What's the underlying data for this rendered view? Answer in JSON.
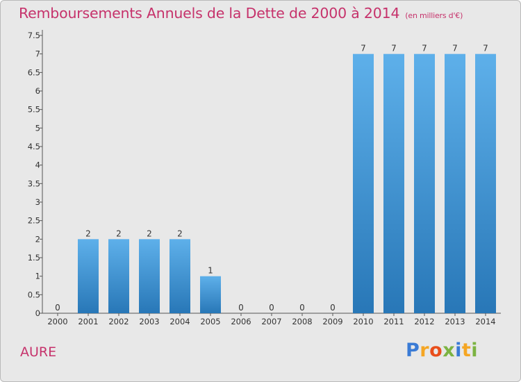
{
  "title": "Remboursements Annuels de la Dette de 2000 à 2014",
  "unit_note": "(en milliers d'€)",
  "commune": "AURE",
  "logo": {
    "letters": [
      "P",
      "r",
      "o",
      "x",
      "i",
      "t",
      "i"
    ],
    "colors": [
      "#3a7bd5",
      "#f5a623",
      "#e94e1b",
      "#7cb342",
      "#3a7bd5",
      "#f5a623",
      "#7cb342"
    ]
  },
  "chart_data": {
    "type": "bar",
    "title": "Remboursements Annuels de la Dette de 2000 à 2014",
    "subtitle": "(en milliers d'€)",
    "xlabel": "",
    "ylabel": "",
    "categories": [
      "2000",
      "2001",
      "2002",
      "2003",
      "2004",
      "2005",
      "2006",
      "2007",
      "2008",
      "2009",
      "2010",
      "2011",
      "2012",
      "2013",
      "2014"
    ],
    "values": [
      0,
      2,
      2,
      2,
      2,
      1,
      0,
      0,
      0,
      0,
      7,
      7,
      7,
      7,
      7
    ],
    "data_labels": [
      "0",
      "2",
      "2",
      "2",
      "2",
      "1",
      "0",
      "0",
      "0",
      "0",
      "7",
      "7",
      "7",
      "7",
      "7"
    ],
    "ylim": [
      0,
      7.5
    ],
    "yticks": [
      "0",
      "0.5",
      "1",
      "1.5",
      "2",
      "2.5",
      "3",
      "3.5",
      "4",
      "4.5",
      "5",
      "5.5",
      "6",
      "6.5",
      "7",
      "7.5"
    ],
    "grid": false,
    "bar_color": "#3d94d6",
    "bar_color_light": "#5eb0ea",
    "bar_color_dark": "#2877b7"
  }
}
